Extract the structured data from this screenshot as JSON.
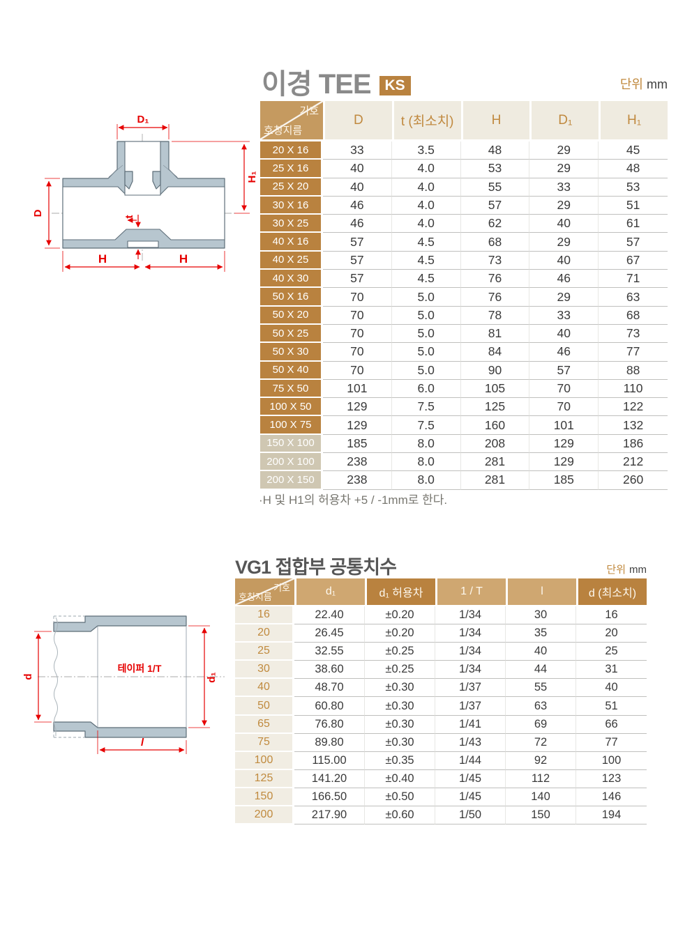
{
  "colors": {
    "accent_dark_tan": "#b9823f",
    "accent_mid_tan": "#c59a60",
    "accent_light_tan": "#cfa771",
    "header_beige": "#efebe0",
    "muted_row_tan": "#cfc7b2",
    "row_label_bg": "#f1ede3",
    "dimension_red": "#e60000",
    "diagram_fill": "#b7c6cf",
    "title_gray": "#8a8a8a"
  },
  "tee_section": {
    "title": "이경 TEE",
    "badge": "KS",
    "unit_label": "단위",
    "unit_value": "mm",
    "table": {
      "corner_top": "기호",
      "corner_bottom": "호칭지름",
      "columns": [
        {
          "label": "D",
          "tone": "beige"
        },
        {
          "label": "t (최소치)",
          "tone": "beige"
        },
        {
          "label": "H",
          "tone": "beige"
        },
        {
          "label": "D₁",
          "tone": "beige"
        },
        {
          "label": "H₁",
          "tone": "beige"
        }
      ],
      "rows": [
        {
          "size": "20 X 16",
          "values": [
            "33",
            "3.5",
            "48",
            "29",
            "45"
          ],
          "muted": false
        },
        {
          "size": "25 X 16",
          "values": [
            "40",
            "4.0",
            "53",
            "29",
            "48"
          ],
          "muted": false
        },
        {
          "size": "25 X 20",
          "values": [
            "40",
            "4.0",
            "55",
            "33",
            "53"
          ],
          "muted": false
        },
        {
          "size": "30 X 16",
          "values": [
            "46",
            "4.0",
            "57",
            "29",
            "51"
          ],
          "muted": false
        },
        {
          "size": "30 X 25",
          "values": [
            "46",
            "4.0",
            "62",
            "40",
            "61"
          ],
          "muted": false
        },
        {
          "size": "40 X 16",
          "values": [
            "57",
            "4.5",
            "68",
            "29",
            "57"
          ],
          "muted": false
        },
        {
          "size": "40 X 25",
          "values": [
            "57",
            "4.5",
            "73",
            "40",
            "67"
          ],
          "muted": false
        },
        {
          "size": "40 X 30",
          "values": [
            "57",
            "4.5",
            "76",
            "46",
            "71"
          ],
          "muted": false
        },
        {
          "size": "50 X 16",
          "values": [
            "70",
            "5.0",
            "76",
            "29",
            "63"
          ],
          "muted": false
        },
        {
          "size": "50 X 20",
          "values": [
            "70",
            "5.0",
            "78",
            "33",
            "68"
          ],
          "muted": false
        },
        {
          "size": "50 X 25",
          "values": [
            "70",
            "5.0",
            "81",
            "40",
            "73"
          ],
          "muted": false
        },
        {
          "size": "50 X 30",
          "values": [
            "70",
            "5.0",
            "84",
            "46",
            "77"
          ],
          "muted": false
        },
        {
          "size": "50 X 40",
          "values": [
            "70",
            "5.0",
            "90",
            "57",
            "88"
          ],
          "muted": false
        },
        {
          "size": "75 X 50",
          "values": [
            "101",
            "6.0",
            "105",
            "70",
            "110"
          ],
          "muted": false
        },
        {
          "size": "100 X 50",
          "values": [
            "129",
            "7.5",
            "125",
            "70",
            "122"
          ],
          "muted": false
        },
        {
          "size": "100 X 75",
          "values": [
            "129",
            "7.5",
            "160",
            "101",
            "132"
          ],
          "muted": false
        },
        {
          "size": "150 X 100",
          "values": [
            "185",
            "8.0",
            "208",
            "129",
            "186"
          ],
          "muted": true
        },
        {
          "size": "200 X 100",
          "values": [
            "238",
            "8.0",
            "281",
            "129",
            "212"
          ],
          "muted": true
        },
        {
          "size": "200 X 150",
          "values": [
            "238",
            "8.0",
            "281",
            "185",
            "260"
          ],
          "muted": true
        }
      ]
    },
    "note": "·H 및 H1의 허용차 +5 / -1mm로 한다.",
    "diagram_labels": {
      "d1": "D₁",
      "h1": "H₁",
      "d": "D",
      "t": "t",
      "h_left": "H",
      "h_right": "H"
    }
  },
  "vg1_section": {
    "title": "VG1 접합부 공통치수",
    "unit_label": "단위",
    "unit_value": "mm",
    "table": {
      "corner_top": "기호",
      "corner_bottom": "호칭지름",
      "columns": [
        {
          "label": "d₁",
          "tone": "light"
        },
        {
          "label": "d₁ 허용차",
          "tone": "dark"
        },
        {
          "label": "1 / T",
          "tone": "light"
        },
        {
          "label": "l",
          "tone": "light"
        },
        {
          "label": "d (최소치)",
          "tone": "dark"
        }
      ],
      "rows": [
        {
          "size": "16",
          "values": [
            "22.40",
            "±0.20",
            "1/34",
            "30",
            "16"
          ],
          "muted": false
        },
        {
          "size": "20",
          "values": [
            "26.45",
            "±0.20",
            "1/34",
            "35",
            "20"
          ],
          "muted": false
        },
        {
          "size": "25",
          "values": [
            "32.55",
            "±0.25",
            "1/34",
            "40",
            "25"
          ],
          "muted": false
        },
        {
          "size": "30",
          "values": [
            "38.60",
            "±0.25",
            "1/34",
            "44",
            "31"
          ],
          "muted": false
        },
        {
          "size": "40",
          "values": [
            "48.70",
            "±0.30",
            "1/37",
            "55",
            "40"
          ],
          "muted": false
        },
        {
          "size": "50",
          "values": [
            "60.80",
            "±0.30",
            "1/37",
            "63",
            "51"
          ],
          "muted": false
        },
        {
          "size": "65",
          "values": [
            "76.80",
            "±0.30",
            "1/41",
            "69",
            "66"
          ],
          "muted": false
        },
        {
          "size": "75",
          "values": [
            "89.80",
            "±0.30",
            "1/43",
            "72",
            "77"
          ],
          "muted": false
        },
        {
          "size": "100",
          "values": [
            "115.00",
            "±0.35",
            "1/44",
            "92",
            "100"
          ],
          "muted": false
        },
        {
          "size": "125",
          "values": [
            "141.20",
            "±0.40",
            "1/45",
            "112",
            "123"
          ],
          "muted": false
        },
        {
          "size": "150",
          "values": [
            "166.50",
            "±0.50",
            "1/45",
            "140",
            "146"
          ],
          "muted": false
        },
        {
          "size": "200",
          "values": [
            "217.90",
            "±0.60",
            "1/50",
            "150",
            "194"
          ],
          "muted": false
        }
      ]
    },
    "diagram_labels": {
      "taper": "테이퍼 1/T",
      "d": "d",
      "d1": "d₁",
      "l": "l"
    }
  }
}
